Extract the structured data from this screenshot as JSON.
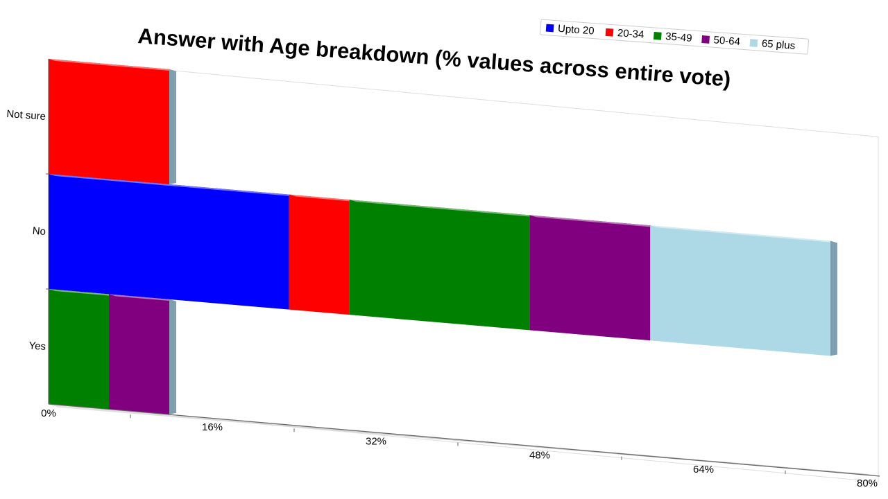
{
  "chart_data": {
    "type": "bar",
    "orientation": "horizontal",
    "stacked": true,
    "title": "Answer with Age breakdown (% values across entire vote)",
    "categories": [
      "Not sure",
      "No",
      "Yes"
    ],
    "series": [
      {
        "name": "Upto 20",
        "color": "#0000ff",
        "values": [
          0,
          23.5,
          0
        ]
      },
      {
        "name": "20-34",
        "color": "#ff0000",
        "values": [
          11.8,
          5.9,
          0
        ]
      },
      {
        "name": "35-49",
        "color": "#008000",
        "values": [
          0,
          17.6,
          5.9
        ]
      },
      {
        "name": "50-64",
        "color": "#800080",
        "values": [
          0,
          11.8,
          5.9
        ]
      },
      {
        "name": "65 plus",
        "color": "#add8e6",
        "values": [
          0,
          17.6,
          0
        ]
      }
    ],
    "x_ticks": [
      "0%",
      "16%",
      "32%",
      "48%",
      "64%",
      "80%"
    ],
    "xlim": [
      0,
      80
    ],
    "grid": false,
    "legend_position": "top-right",
    "style": "3d-perspective"
  }
}
